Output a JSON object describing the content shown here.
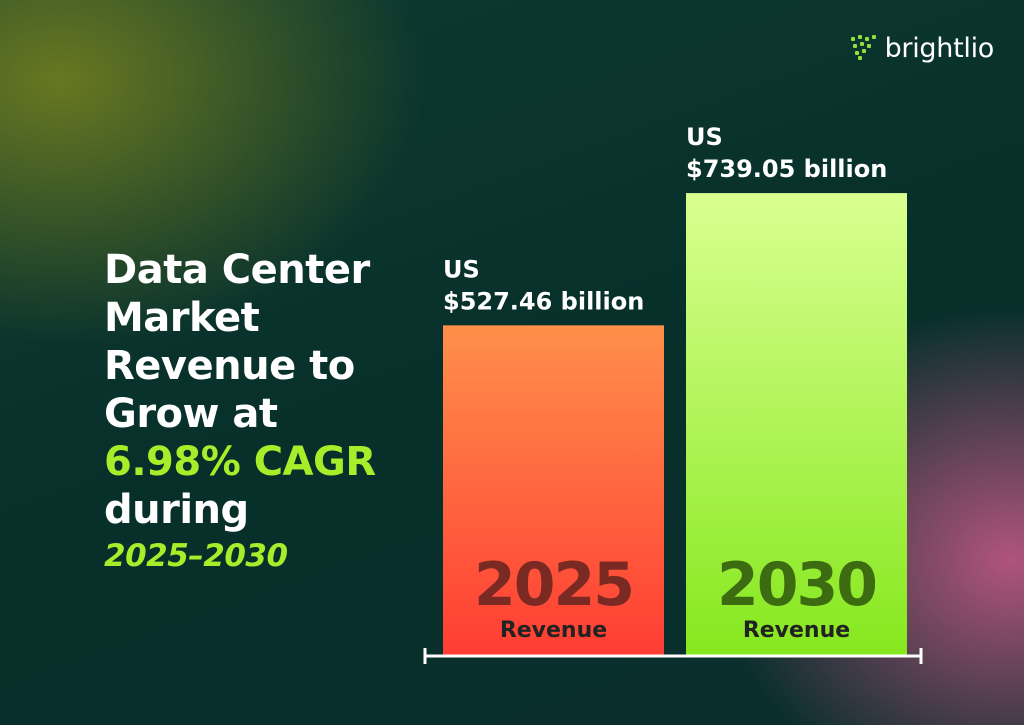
{
  "brand": {
    "name": "brightlio",
    "icon": "dot-grid-logo-icon"
  },
  "headline": {
    "lines": [
      "Data Center",
      "Market",
      "Revenue to",
      "Grow at"
    ],
    "cagr": "6.98% CAGR",
    "during": "during",
    "period": "2025–2030"
  },
  "chart_data": {
    "type": "bar",
    "categories": [
      "2025",
      "2030"
    ],
    "values": [
      527.46,
      739.05
    ],
    "value_labels": [
      [
        "US",
        "$527.46 billion"
      ],
      [
        "US",
        "$739.05 billion"
      ]
    ],
    "bar_sublabel": "Revenue",
    "ylim": [
      0,
      840
    ],
    "grid": false,
    "colors": {
      "bar_2025_top": "#ff8f4b",
      "bar_2025_bottom": "#ff3d33",
      "bar_2025_text": "#7a2a22",
      "bar_2030_top": "#d9ff90",
      "bar_2030_bottom": "#86e81e",
      "bar_2030_text": "#3d6b12"
    }
  }
}
